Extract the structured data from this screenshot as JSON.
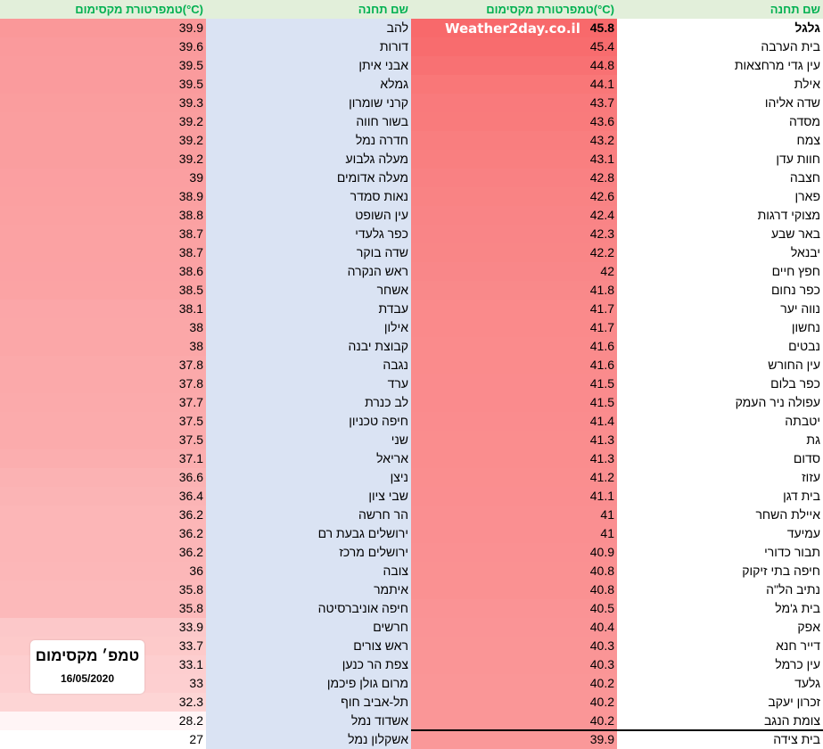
{
  "headers": {
    "right_station": "שם תחנה",
    "right_temp": "טמפרטורת מקסימום(°C)",
    "left_station": "שם תחנה",
    "left_temp": "טמפרטורת מקסימום(°C)"
  },
  "watermark": "Weather2day.co.il",
  "legend": {
    "title": "טמפ׳ מקסימום",
    "date": "16/05/2020"
  },
  "colors": {
    "header_bg": "#e2efda",
    "header_text": "#00b050",
    "station_bg_left": "#dae3f3",
    "heat_max": "#f8696b",
    "heat_min": "#ffffff"
  },
  "rows": [
    {
      "right_station": "גלגל",
      "right_temp": "45.8",
      "left_station": "להב",
      "left_temp": "39.9"
    },
    {
      "right_station": "בית הערבה",
      "right_temp": "45.4",
      "left_station": "דורות",
      "left_temp": "39.6"
    },
    {
      "right_station": "עין גדי מרחצאות",
      "right_temp": "44.8",
      "left_station": "אבני איתן",
      "left_temp": "39.5"
    },
    {
      "right_station": "אילת",
      "right_temp": "44.1",
      "left_station": "גמלא",
      "left_temp": "39.5"
    },
    {
      "right_station": "שדה אליהו",
      "right_temp": "43.7",
      "left_station": "קרני שומרון",
      "left_temp": "39.3"
    },
    {
      "right_station": "מסדה",
      "right_temp": "43.6",
      "left_station": "בשור חווה",
      "left_temp": "39.2"
    },
    {
      "right_station": "צמח",
      "right_temp": "43.2",
      "left_station": "חדרה נמל",
      "left_temp": "39.2"
    },
    {
      "right_station": "חוות עדן",
      "right_temp": "43.1",
      "left_station": "מעלה גלבוע",
      "left_temp": "39.2"
    },
    {
      "right_station": "חצבה",
      "right_temp": "42.8",
      "left_station": "מעלה אדומים",
      "left_temp": "39"
    },
    {
      "right_station": "פארן",
      "right_temp": "42.6",
      "left_station": "נאות סמדר",
      "left_temp": "38.9"
    },
    {
      "right_station": "מצוקי דרגות",
      "right_temp": "42.4",
      "left_station": "עין השופט",
      "left_temp": "38.8"
    },
    {
      "right_station": "באר שבע",
      "right_temp": "42.3",
      "left_station": "כפר גלעדי",
      "left_temp": "38.7"
    },
    {
      "right_station": "יבנאל",
      "right_temp": "42.2",
      "left_station": "שדה בוקר",
      "left_temp": "38.7"
    },
    {
      "right_station": "חפץ חיים",
      "right_temp": "42",
      "left_station": "ראש הנקרה",
      "left_temp": "38.6"
    },
    {
      "right_station": "כפר נחום",
      "right_temp": "41.8",
      "left_station": "אשחר",
      "left_temp": "38.5"
    },
    {
      "right_station": "נווה יער",
      "right_temp": "41.7",
      "left_station": "עבדת",
      "left_temp": "38.1"
    },
    {
      "right_station": "נחשון",
      "right_temp": "41.7",
      "left_station": "אילון",
      "left_temp": "38"
    },
    {
      "right_station": "נבטים",
      "right_temp": "41.6",
      "left_station": "קבוצת יבנה",
      "left_temp": "38"
    },
    {
      "right_station": "עין החורש",
      "right_temp": "41.6",
      "left_station": "נגבה",
      "left_temp": "37.8"
    },
    {
      "right_station": "כפר בלום",
      "right_temp": "41.5",
      "left_station": "ערד",
      "left_temp": "37.8"
    },
    {
      "right_station": "עפולה ניר העמק",
      "right_temp": "41.5",
      "left_station": "לב כנרת",
      "left_temp": "37.7"
    },
    {
      "right_station": "יטבתה",
      "right_temp": "41.4",
      "left_station": "חיפה טכניון",
      "left_temp": "37.5"
    },
    {
      "right_station": "גת",
      "right_temp": "41.3",
      "left_station": "שני",
      "left_temp": "37.5"
    },
    {
      "right_station": "סדום",
      "right_temp": "41.3",
      "left_station": "אריאל",
      "left_temp": "37.1"
    },
    {
      "right_station": "עזוז",
      "right_temp": "41.2",
      "left_station": "ניצן",
      "left_temp": "36.6"
    },
    {
      "right_station": "בית דגן",
      "right_temp": "41.1",
      "left_station": "שבי ציון",
      "left_temp": "36.4"
    },
    {
      "right_station": "איילת השחר",
      "right_temp": "41",
      "left_station": "הר חרשה",
      "left_temp": "36.2"
    },
    {
      "right_station": "עמיעד",
      "right_temp": "41",
      "left_station": "ירושלים גבעת רם",
      "left_temp": "36.2"
    },
    {
      "right_station": "תבור כדורי",
      "right_temp": "40.9",
      "left_station": "ירושלים מרכז",
      "left_temp": "36.2"
    },
    {
      "right_station": "חיפה בתי זיקוק",
      "right_temp": "40.8",
      "left_station": "צובה",
      "left_temp": "36"
    },
    {
      "right_station": "נתיב הל\"ה",
      "right_temp": "40.8",
      "left_station": "איתמר",
      "left_temp": "35.8"
    },
    {
      "right_station": "בית ג'מל",
      "right_temp": "40.5",
      "left_station": "חיפה אוניברסיטה",
      "left_temp": "35.8"
    },
    {
      "right_station": "אפק",
      "right_temp": "40.4",
      "left_station": "חרשים",
      "left_temp": "33.9"
    },
    {
      "right_station": "דייר חנא",
      "right_temp": "40.3",
      "left_station": "ראש צורים",
      "left_temp": "33.7"
    },
    {
      "right_station": "עין כרמל",
      "right_temp": "40.3",
      "left_station": "צפת הר כנען",
      "left_temp": "33.1"
    },
    {
      "right_station": "גלעד",
      "right_temp": "40.2",
      "left_station": "מרום גולן פיכמן",
      "left_temp": "33"
    },
    {
      "right_station": "זכרון יעקב",
      "right_temp": "40.2",
      "left_station": "תל-אביב חוף",
      "left_temp": "32.3"
    },
    {
      "right_station": "צומת הנגב",
      "right_temp": "40.2",
      "left_station": "אשדוד נמל",
      "left_temp": "28.2"
    },
    {
      "right_station": "בית צידה",
      "right_temp": "39.9",
      "left_station": "אשקלון נמל",
      "left_temp": "27"
    }
  ]
}
